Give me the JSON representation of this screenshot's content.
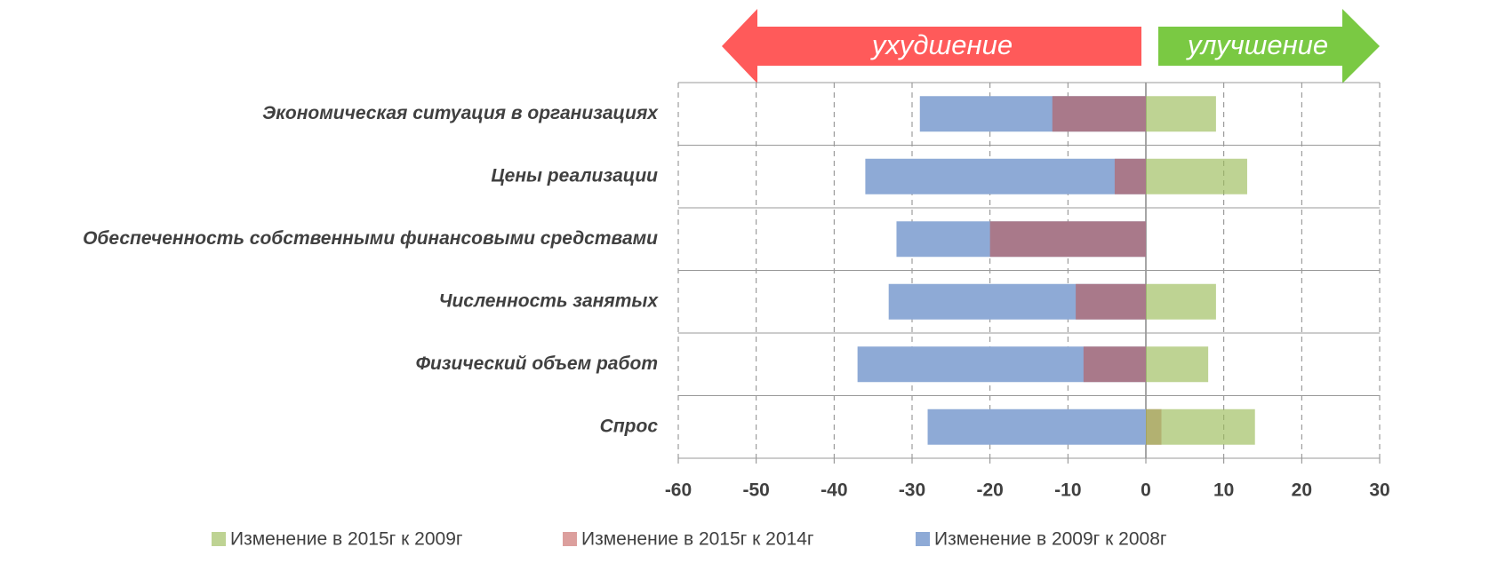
{
  "chart_data": {
    "type": "bar",
    "orientation": "horizontal",
    "annotations": [
      "ухудшение",
      "улучшение"
    ],
    "categories": [
      "Экономическая ситуация в организациях",
      "Цены реализации",
      "Обеспеченность собственными финансовыми средствами",
      "Численность занятых",
      "Физический объем работ",
      "Спрос"
    ],
    "series": [
      {
        "name": "Изменение в 2015г к 2009г",
        "color": "#9bbb59",
        "values": [
          9,
          13,
          0,
          9,
          8,
          14
        ]
      },
      {
        "name": "Изменение в 2015г к 2014г",
        "color": "#c0504d",
        "values": [
          -12,
          -4,
          -20,
          -9,
          -8,
          2
        ]
      },
      {
        "name": "Изменение в 2009г к 2008г",
        "color": "#8eaad6",
        "values": [
          -29,
          -36,
          -32,
          -33,
          -37,
          -28
        ]
      }
    ],
    "xlim": [
      -60,
      30
    ],
    "xticks": [
      -60,
      -50,
      -40,
      -30,
      -20,
      -10,
      0,
      10,
      20,
      30
    ],
    "grid": true,
    "legend": "bottom"
  }
}
